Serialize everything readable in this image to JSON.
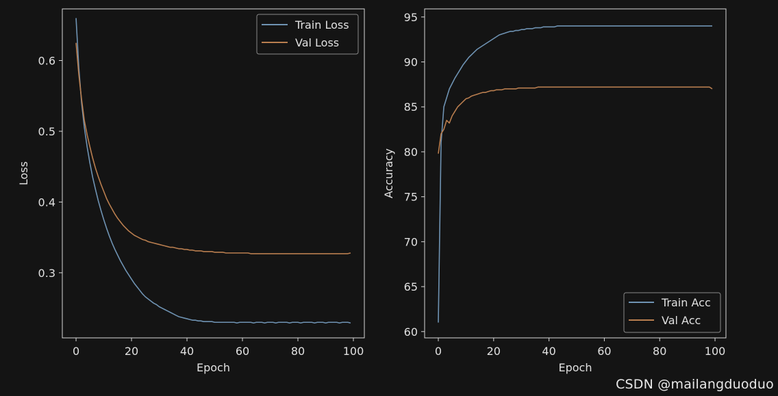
{
  "watermark": "CSDN @mailangduoduo",
  "style": {
    "background": "#141414",
    "axes_color": "#d9d9d9",
    "text_color": "#e0e0e0",
    "train_color": "#6f93b3",
    "val_color": "#b97e4f"
  },
  "chart_data": [
    {
      "type": "line",
      "title": "",
      "xlabel": "Epoch",
      "ylabel": "Loss",
      "xlim": [
        -4.95,
        103.95
      ],
      "ylim": [
        0.208,
        0.673
      ],
      "xticks": [
        0,
        20,
        40,
        60,
        80,
        100
      ],
      "yticks": [
        0.3,
        0.4,
        0.5,
        0.6
      ],
      "ytick_labels": [
        "0.3",
        "0.4",
        "0.5",
        "0.6"
      ],
      "legend_position": "top-right",
      "grid": false,
      "x_start": 0,
      "series": [
        {
          "name": "Train Loss",
          "color": "#6f93b3",
          "values": [
            0.66,
            0.59,
            0.54,
            0.505,
            0.478,
            0.455,
            0.435,
            0.418,
            0.402,
            0.388,
            0.375,
            0.363,
            0.352,
            0.342,
            0.333,
            0.325,
            0.317,
            0.31,
            0.303,
            0.297,
            0.291,
            0.285,
            0.28,
            0.275,
            0.27,
            0.266,
            0.263,
            0.26,
            0.257,
            0.255,
            0.252,
            0.25,
            0.248,
            0.246,
            0.244,
            0.242,
            0.24,
            0.238,
            0.237,
            0.236,
            0.235,
            0.234,
            0.233,
            0.233,
            0.232,
            0.232,
            0.231,
            0.231,
            0.231,
            0.231,
            0.23,
            0.23,
            0.23,
            0.23,
            0.23,
            0.23,
            0.23,
            0.23,
            0.229,
            0.23,
            0.23,
            0.23,
            0.23,
            0.23,
            0.229,
            0.23,
            0.23,
            0.23,
            0.229,
            0.23,
            0.23,
            0.23,
            0.229,
            0.23,
            0.23,
            0.23,
            0.23,
            0.229,
            0.23,
            0.23,
            0.23,
            0.229,
            0.23,
            0.23,
            0.23,
            0.23,
            0.229,
            0.23,
            0.23,
            0.23,
            0.229,
            0.23,
            0.23,
            0.23,
            0.23,
            0.229,
            0.23,
            0.23,
            0.23,
            0.229
          ]
        },
        {
          "name": "Val Loss",
          "color": "#b97e4f",
          "values": [
            0.625,
            0.58,
            0.545,
            0.515,
            0.495,
            0.478,
            0.462,
            0.448,
            0.436,
            0.425,
            0.415,
            0.405,
            0.397,
            0.39,
            0.383,
            0.377,
            0.372,
            0.367,
            0.363,
            0.359,
            0.356,
            0.353,
            0.351,
            0.349,
            0.347,
            0.346,
            0.344,
            0.343,
            0.342,
            0.341,
            0.34,
            0.339,
            0.338,
            0.337,
            0.336,
            0.336,
            0.335,
            0.334,
            0.334,
            0.333,
            0.333,
            0.332,
            0.332,
            0.331,
            0.331,
            0.331,
            0.33,
            0.33,
            0.33,
            0.33,
            0.329,
            0.329,
            0.329,
            0.329,
            0.328,
            0.328,
            0.328,
            0.328,
            0.328,
            0.328,
            0.328,
            0.328,
            0.328,
            0.327,
            0.327,
            0.327,
            0.327,
            0.327,
            0.327,
            0.327,
            0.327,
            0.327,
            0.327,
            0.327,
            0.327,
            0.327,
            0.327,
            0.327,
            0.327,
            0.327,
            0.327,
            0.327,
            0.327,
            0.327,
            0.327,
            0.327,
            0.327,
            0.327,
            0.327,
            0.327,
            0.327,
            0.327,
            0.327,
            0.327,
            0.327,
            0.327,
            0.327,
            0.327,
            0.327,
            0.328
          ]
        }
      ]
    },
    {
      "type": "line",
      "title": "",
      "xlabel": "Epoch",
      "ylabel": "Accuracy",
      "xlim": [
        -4.95,
        103.95
      ],
      "ylim": [
        59.3,
        95.9
      ],
      "xticks": [
        0,
        20,
        40,
        60,
        80,
        100
      ],
      "yticks": [
        60,
        65,
        70,
        75,
        80,
        85,
        90,
        95
      ],
      "ytick_labels": [
        "60",
        "65",
        "70",
        "75",
        "80",
        "85",
        "90",
        "95"
      ],
      "legend_position": "bottom-right",
      "grid": false,
      "x_start": 0,
      "series": [
        {
          "name": "Train Acc",
          "color": "#6f93b3",
          "values": [
            61.0,
            81.0,
            85.0,
            86.0,
            87.0,
            87.6,
            88.2,
            88.7,
            89.2,
            89.7,
            90.1,
            90.5,
            90.8,
            91.1,
            91.4,
            91.6,
            91.8,
            92.0,
            92.2,
            92.4,
            92.6,
            92.8,
            93.0,
            93.1,
            93.2,
            93.3,
            93.4,
            93.4,
            93.5,
            93.5,
            93.6,
            93.6,
            93.7,
            93.7,
            93.7,
            93.8,
            93.8,
            93.8,
            93.9,
            93.9,
            93.9,
            93.9,
            93.9,
            94.0,
            94.0,
            94.0,
            94.0,
            94.0,
            94.0,
            94.0,
            94.0,
            94.0,
            94.0,
            94.0,
            94.0,
            94.0,
            94.0,
            94.0,
            94.0,
            94.0,
            94.0,
            94.0,
            94.0,
            94.0,
            94.0,
            94.0,
            94.0,
            94.0,
            94.0,
            94.0,
            94.0,
            94.0,
            94.0,
            94.0,
            94.0,
            94.0,
            94.0,
            94.0,
            94.0,
            94.0,
            94.0,
            94.0,
            94.0,
            94.0,
            94.0,
            94.0,
            94.0,
            94.0,
            94.0,
            94.0,
            94.0,
            94.0,
            94.0,
            94.0,
            94.0,
            94.0,
            94.0,
            94.0,
            94.0,
            94.0
          ]
        },
        {
          "name": "Val Acc",
          "color": "#b97e4f",
          "values": [
            79.8,
            82.0,
            82.5,
            83.5,
            83.2,
            84.0,
            84.5,
            85.0,
            85.3,
            85.6,
            85.9,
            86.0,
            86.2,
            86.3,
            86.4,
            86.5,
            86.6,
            86.6,
            86.7,
            86.8,
            86.8,
            86.9,
            86.9,
            86.9,
            87.0,
            87.0,
            87.0,
            87.0,
            87.0,
            87.1,
            87.1,
            87.1,
            87.1,
            87.1,
            87.1,
            87.1,
            87.2,
            87.2,
            87.2,
            87.2,
            87.2,
            87.2,
            87.2,
            87.2,
            87.2,
            87.2,
            87.2,
            87.2,
            87.2,
            87.2,
            87.2,
            87.2,
            87.2,
            87.2,
            87.2,
            87.2,
            87.2,
            87.2,
            87.2,
            87.2,
            87.2,
            87.2,
            87.2,
            87.2,
            87.2,
            87.2,
            87.2,
            87.2,
            87.2,
            87.2,
            87.2,
            87.2,
            87.2,
            87.2,
            87.2,
            87.2,
            87.2,
            87.2,
            87.2,
            87.2,
            87.2,
            87.2,
            87.2,
            87.2,
            87.2,
            87.2,
            87.2,
            87.2,
            87.2,
            87.2,
            87.2,
            87.2,
            87.2,
            87.2,
            87.2,
            87.2,
            87.2,
            87.2,
            87.2,
            87.0
          ]
        }
      ]
    }
  ]
}
